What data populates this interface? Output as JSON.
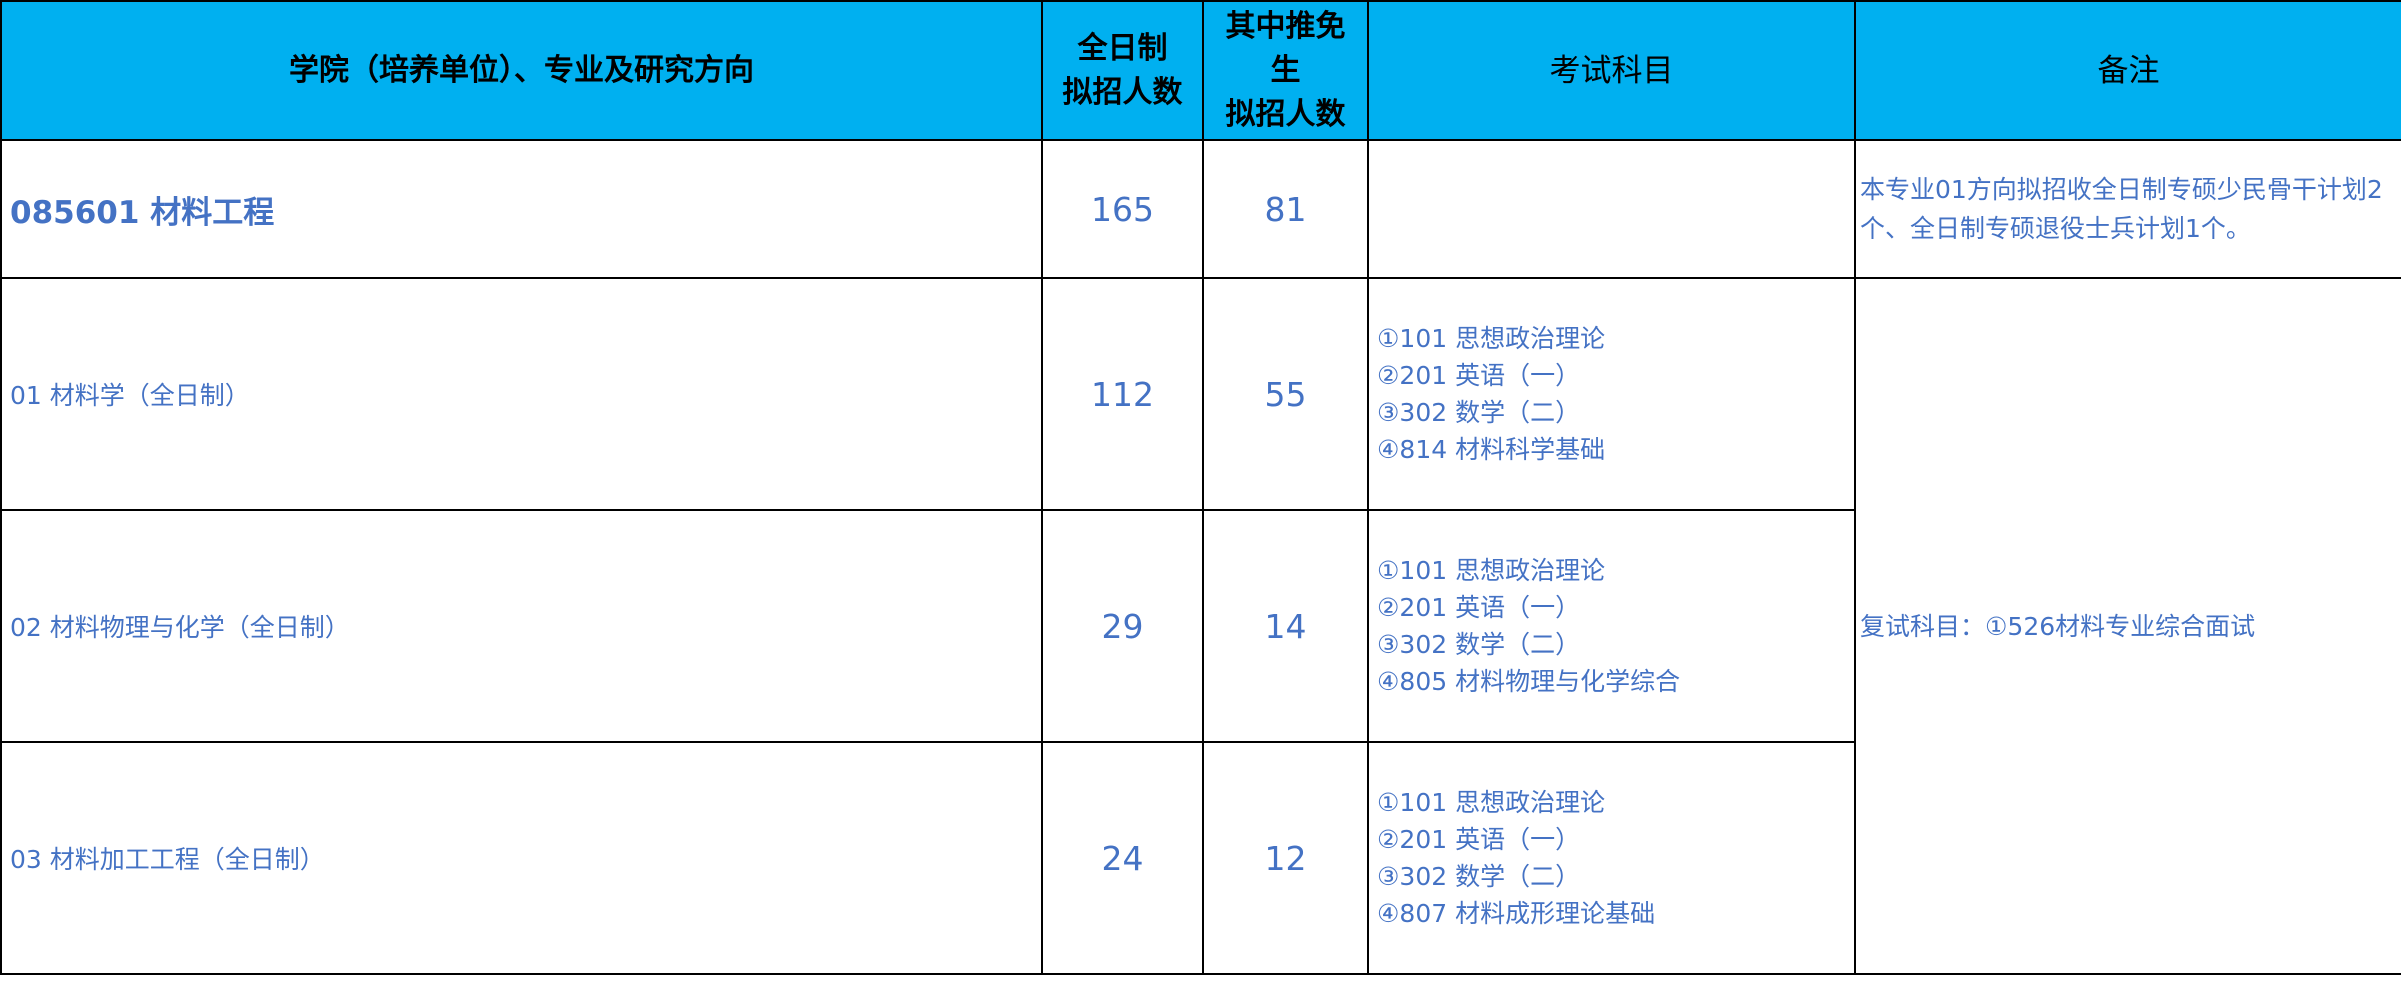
{
  "header": {
    "col_unit": "学院（培养单位）、专业及研究方向",
    "col_full_time_line1": "全日制",
    "col_full_time_line2": "拟招人数",
    "col_exempt_line1": "其中推免",
    "col_exempt_line2": "生",
    "col_exempt_line3": "拟招人数",
    "col_exam": "考试科目",
    "col_note": "备注"
  },
  "major": {
    "name": "085601 材料工程",
    "full_time": "165",
    "exempt": "81",
    "note": "本专业01方向拟招收全日制专硕少民骨干计划2个、全日制专硕退役士兵计划1个。"
  },
  "directions": [
    {
      "name": "01 材料学（全日制）",
      "full_time": "112",
      "exempt": "55",
      "exams": [
        "①101 思想政治理论",
        "②201 英语（一）",
        "③302 数学（二）",
        "④814 材料科学基础"
      ]
    },
    {
      "name": "02 材料物理与化学（全日制）",
      "full_time": "29",
      "exempt": "14",
      "exams": [
        "①101 思想政治理论",
        "②201 英语（一）",
        "③302 数学（二）",
        "④805 材料物理与化学综合"
      ]
    },
    {
      "name": "03 材料加工工程（全日制）",
      "full_time": "24",
      "exempt": "12",
      "exams": [
        "①101 思想政治理论",
        "②201 英语（一）",
        "③302 数学（二）",
        "④807 材料成形理论基础"
      ]
    }
  ],
  "retest_note": "复试科目：①526材料专业综合面试",
  "colors": {
    "header_bg": "#00b0f0",
    "text": "#4472c4",
    "border": "#000000"
  }
}
